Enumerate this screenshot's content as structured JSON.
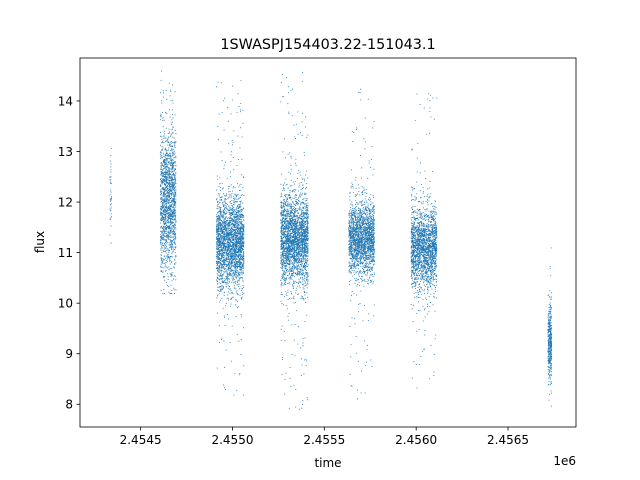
{
  "chart_data": {
    "type": "scatter",
    "title": "1SWASPJ154403.22-151043.1",
    "xlabel": "time",
    "ylabel": "flux",
    "x_offset_label": "1e6",
    "xlim": [
      2454170,
      2456870
    ],
    "ylim": [
      7.55,
      14.85
    ],
    "x_ticks": [
      2454500,
      2455000,
      2455500,
      2456000,
      2456500
    ],
    "x_tick_labels": [
      "2.4545",
      "2.4550",
      "2.4555",
      "2.4560",
      "2.4565"
    ],
    "y_ticks": [
      8,
      9,
      10,
      11,
      12,
      13,
      14
    ],
    "y_tick_labels": [
      "8",
      "9",
      "10",
      "11",
      "12",
      "13",
      "14"
    ],
    "grid": false,
    "marker_color": "#1f77b4",
    "clusters": [
      {
        "x_range": [
          2454330,
          2454340
        ],
        "y_center": 12.2,
        "y_spread": 0.6,
        "y_range": [
          11.2,
          13.6
        ],
        "approx_points": 40
      },
      {
        "x_range": [
          2454605,
          2454690
        ],
        "y_center": 12.0,
        "y_spread": 0.7,
        "y_range": [
          10.2,
          14.6
        ],
        "approx_points": 1600
      },
      {
        "x_range": [
          2454910,
          2455060
        ],
        "y_center": 11.2,
        "y_spread": 0.45,
        "y_range": [
          8.1,
          14.5
        ],
        "approx_points": 2600
      },
      {
        "x_range": [
          2455260,
          2455410
        ],
        "y_center": 11.3,
        "y_spread": 0.45,
        "y_range": [
          7.9,
          14.6
        ],
        "approx_points": 2600
      },
      {
        "x_range": [
          2455630,
          2455770
        ],
        "y_center": 11.3,
        "y_spread": 0.35,
        "y_range": [
          8.1,
          14.4
        ],
        "approx_points": 2000
      },
      {
        "x_range": [
          2455970,
          2456110
        ],
        "y_center": 11.1,
        "y_spread": 0.4,
        "y_range": [
          8.1,
          14.3
        ],
        "approx_points": 2000
      },
      {
        "x_range": [
          2456715,
          2456735
        ],
        "y_center": 9.2,
        "y_spread": 0.35,
        "y_range": [
          7.9,
          12.1
        ],
        "approx_points": 400
      }
    ]
  }
}
